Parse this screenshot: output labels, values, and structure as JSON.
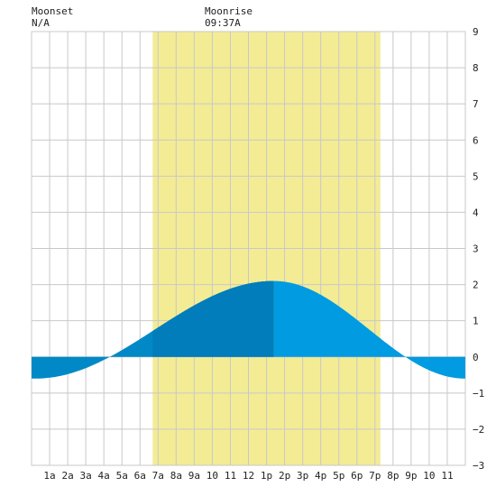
{
  "moonset": {
    "label": "Moonset",
    "time": "N/A"
  },
  "moonrise": {
    "label": "Moonrise",
    "time": "09:37A"
  },
  "colors": {
    "daylight": "#f3ec95",
    "tide_rising": "#0089c6",
    "tide_falling": "#009be0",
    "tide_high_side": "#007dba",
    "grid": "#c8c8c8",
    "background": "#ffffff"
  },
  "chart_data": {
    "type": "area",
    "title": "",
    "xlabel": "",
    "ylabel": "",
    "xlim": [
      0,
      24
    ],
    "ylim": [
      -3,
      9
    ],
    "y_ticks": [
      "9",
      "8",
      "7",
      "6",
      "5",
      "4",
      "3",
      "2",
      "1",
      "0",
      "−1",
      "−2",
      "−3"
    ],
    "x_ticks": [
      "1a",
      "2a",
      "3a",
      "4a",
      "5a",
      "6a",
      "7a",
      "8a",
      "9a",
      "10",
      "11",
      "12",
      "1p",
      "2p",
      "3p",
      "4p",
      "5p",
      "6p",
      "7p",
      "8p",
      "9p",
      "10",
      "11"
    ],
    "daylight": {
      "start": 6.7,
      "end": 19.3
    },
    "tide": {
      "low_time": 0.2,
      "low_height": -0.6,
      "high_time": 13.4,
      "high_height": 2.1,
      "second_low_time": 24.0,
      "second_low_height": -0.6
    },
    "grid": true
  }
}
